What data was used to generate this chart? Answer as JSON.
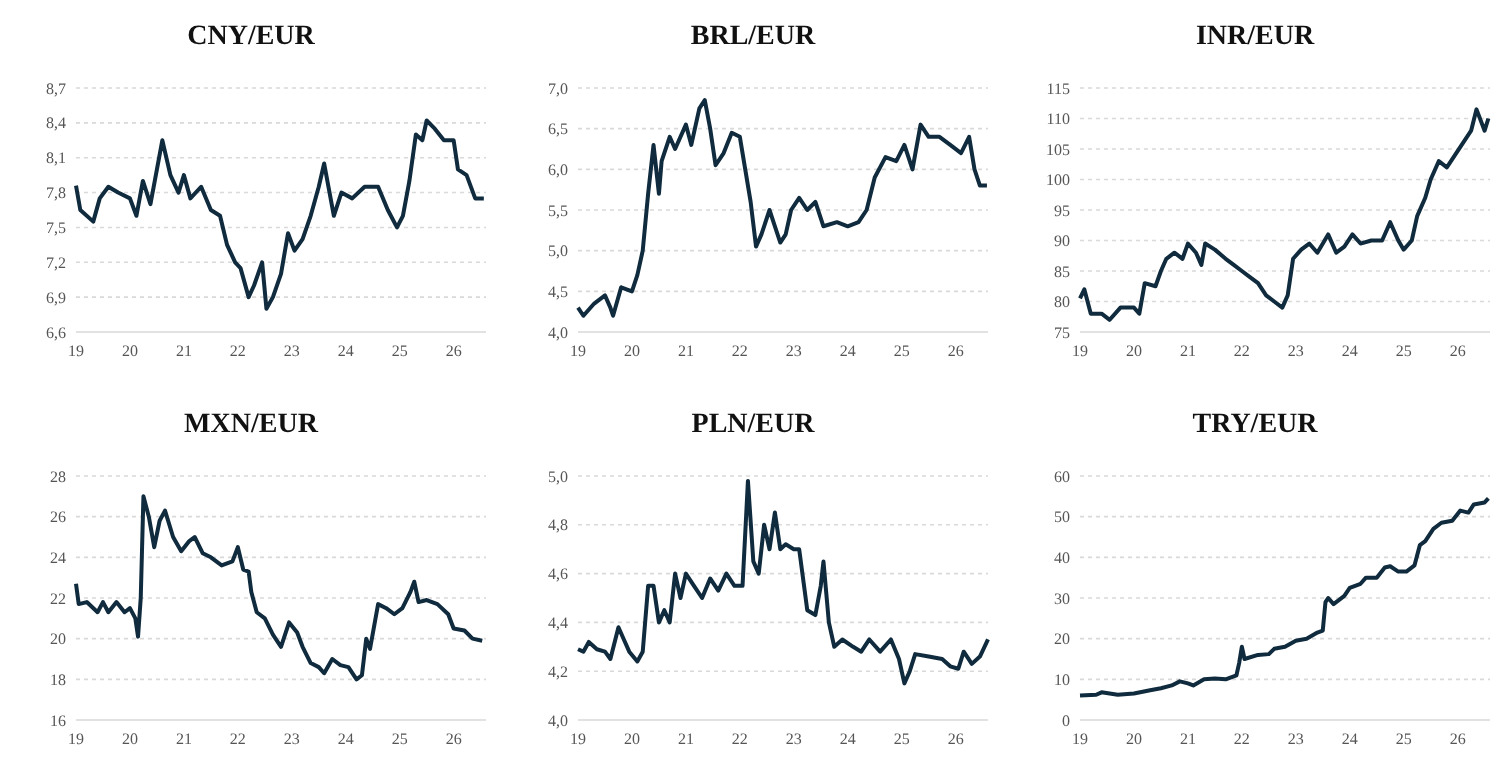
{
  "chart_data": [
    {
      "type": "line",
      "title": "CNY/EUR",
      "xlim": [
        19,
        26.6
      ],
      "xticks": [
        19,
        20,
        21,
        22,
        23,
        24,
        25,
        26
      ],
      "ylim": [
        6.6,
        8.7
      ],
      "yticks": [
        {
          "value": 6.6,
          "label": "6,6"
        },
        {
          "value": 6.9,
          "label": "6,9"
        },
        {
          "value": 7.2,
          "label": "7,2"
        },
        {
          "value": 7.5,
          "label": "7,5"
        },
        {
          "value": 7.8,
          "label": "7,8"
        },
        {
          "value": 8.1,
          "label": "8,1"
        },
        {
          "value": 8.4,
          "label": "8,4"
        },
        {
          "value": 8.7,
          "label": "8,7"
        }
      ],
      "grid": "y",
      "x": [
        19.0,
        19.08,
        19.32,
        19.44,
        19.6,
        19.78,
        20.0,
        20.12,
        20.24,
        20.38,
        20.5,
        20.6,
        20.75,
        20.9,
        21.0,
        21.12,
        21.32,
        21.5,
        21.67,
        21.8,
        21.95,
        22.05,
        22.2,
        22.3,
        22.45,
        22.53,
        22.65,
        22.8,
        22.93,
        23.05,
        23.2,
        23.35,
        23.5,
        23.6,
        23.68,
        23.78,
        23.92,
        24.12,
        24.35,
        24.6,
        24.78,
        24.95,
        25.06,
        25.18,
        25.3,
        25.42,
        25.5,
        25.65,
        25.82,
        26.0,
        26.08,
        26.24,
        26.4,
        26.56
      ],
      "series": [
        {
          "color": "#0f2b3d",
          "values": [
            7.86,
            7.65,
            7.55,
            7.75,
            7.85,
            7.8,
            7.75,
            7.6,
            7.9,
            7.7,
            8.0,
            8.25,
            7.95,
            7.8,
            7.95,
            7.75,
            7.85,
            7.65,
            7.6,
            7.35,
            7.2,
            7.15,
            6.9,
            7.0,
            7.2,
            6.8,
            6.9,
            7.1,
            7.45,
            7.3,
            7.4,
            7.6,
            7.85,
            8.05,
            7.85,
            7.6,
            7.8,
            7.75,
            7.85,
            7.85,
            7.65,
            7.5,
            7.6,
            7.9,
            8.3,
            8.25,
            8.42,
            8.35,
            8.25,
            8.25,
            8.0,
            7.95,
            7.75,
            7.75
          ]
        }
      ]
    },
    {
      "type": "line",
      "title": "BRL/EUR",
      "xlim": [
        19,
        26.6
      ],
      "xticks": [
        19,
        20,
        21,
        22,
        23,
        24,
        25,
        26
      ],
      "ylim": [
        4.0,
        7.0
      ],
      "yticks": [
        {
          "value": 4.0,
          "label": "4,0"
        },
        {
          "value": 4.5,
          "label": "4,5"
        },
        {
          "value": 5.0,
          "label": "5,0"
        },
        {
          "value": 5.5,
          "label": "5,5"
        },
        {
          "value": 6.0,
          "label": "6,0"
        },
        {
          "value": 6.5,
          "label": "6,5"
        },
        {
          "value": 7.0,
          "label": "7,0"
        }
      ],
      "grid": "y",
      "x": [
        19.0,
        19.1,
        19.3,
        19.5,
        19.6,
        19.65,
        19.8,
        20.0,
        20.1,
        20.2,
        20.3,
        20.4,
        20.5,
        20.55,
        20.7,
        20.8,
        21.0,
        21.1,
        21.25,
        21.35,
        21.45,
        21.55,
        21.7,
        21.85,
        22.0,
        22.1,
        22.2,
        22.3,
        22.4,
        22.55,
        22.65,
        22.75,
        22.85,
        22.95,
        23.1,
        23.25,
        23.4,
        23.55,
        23.8,
        24.0,
        24.2,
        24.35,
        24.5,
        24.7,
        24.9,
        25.05,
        25.2,
        25.35,
        25.5,
        25.7,
        25.9,
        26.1,
        26.25,
        26.35,
        26.45,
        26.58
      ],
      "series": [
        {
          "color": "#0f2b3d",
          "values": [
            4.3,
            4.2,
            4.35,
            4.45,
            4.3,
            4.2,
            4.55,
            4.5,
            4.7,
            5.0,
            5.7,
            6.3,
            5.7,
            6.1,
            6.4,
            6.25,
            6.55,
            6.3,
            6.75,
            6.85,
            6.5,
            6.05,
            6.2,
            6.45,
            6.4,
            6.0,
            5.6,
            5.05,
            5.2,
            5.5,
            5.3,
            5.1,
            5.2,
            5.5,
            5.65,
            5.5,
            5.6,
            5.3,
            5.35,
            5.3,
            5.35,
            5.5,
            5.9,
            6.15,
            6.1,
            6.3,
            6.0,
            6.55,
            6.4,
            6.4,
            6.3,
            6.2,
            6.4,
            6.0,
            5.8,
            5.8
          ]
        }
      ]
    },
    {
      "type": "line",
      "title": "INR/EUR",
      "xlim": [
        19,
        26.6
      ],
      "xticks": [
        19,
        20,
        21,
        22,
        23,
        24,
        25,
        26
      ],
      "ylim": [
        75,
        115
      ],
      "yticks": [
        75,
        80,
        85,
        90,
        95,
        100,
        105,
        110,
        115
      ],
      "grid": "y",
      "x": [
        19.0,
        19.08,
        19.2,
        19.4,
        19.55,
        19.75,
        20.0,
        20.1,
        20.2,
        20.4,
        20.5,
        20.6,
        20.75,
        20.9,
        21.0,
        21.15,
        21.25,
        21.32,
        21.5,
        21.7,
        21.85,
        22.0,
        22.15,
        22.3,
        22.45,
        22.6,
        22.75,
        22.85,
        22.95,
        23.1,
        23.25,
        23.4,
        23.6,
        23.75,
        23.9,
        24.05,
        24.2,
        24.4,
        24.6,
        24.75,
        24.9,
        25.0,
        25.15,
        25.25,
        25.4,
        25.5,
        25.65,
        25.8,
        25.95,
        26.1,
        26.25,
        26.35,
        26.5,
        26.57
      ],
      "series": [
        {
          "color": "#0f2b3d",
          "values": [
            80.5,
            82,
            78,
            78,
            77,
            79,
            79,
            78,
            83,
            82.5,
            85,
            87,
            88,
            87,
            89.5,
            88,
            86,
            89.5,
            88.5,
            87,
            86,
            85,
            84,
            83,
            81,
            80,
            79,
            81,
            87,
            88.5,
            89.5,
            88,
            91,
            88,
            89,
            91,
            89.5,
            90,
            90,
            93,
            90,
            88.5,
            90,
            94,
            97,
            100,
            103,
            102,
            104,
            106,
            108,
            111.5,
            108,
            110
          ]
        }
      ]
    },
    {
      "type": "line",
      "title": "MXN/EUR",
      "xlim": [
        19,
        26.6
      ],
      "xticks": [
        19,
        20,
        21,
        22,
        23,
        24,
        25,
        26
      ],
      "ylim": [
        16,
        28
      ],
      "yticks": [
        16,
        18,
        20,
        22,
        24,
        26,
        28
      ],
      "grid": "y",
      "x": [
        19.0,
        19.05,
        19.2,
        19.4,
        19.5,
        19.6,
        19.75,
        19.9,
        20.0,
        20.1,
        20.15,
        20.2,
        20.25,
        20.35,
        20.45,
        20.55,
        20.65,
        20.8,
        20.95,
        21.1,
        21.2,
        21.35,
        21.5,
        21.7,
        21.9,
        22.0,
        22.1,
        22.2,
        22.25,
        22.35,
        22.5,
        22.65,
        22.8,
        22.95,
        23.1,
        23.2,
        23.35,
        23.5,
        23.6,
        23.75,
        23.9,
        24.05,
        24.2,
        24.3,
        24.38,
        24.45,
        24.6,
        24.75,
        24.9,
        25.05,
        25.2,
        25.27,
        25.35,
        25.5,
        25.7,
        25.9,
        26.0,
        26.2,
        26.35,
        26.53
      ],
      "series": [
        {
          "color": "#0f2b3d",
          "values": [
            22.7,
            21.7,
            21.8,
            21.3,
            21.8,
            21.3,
            21.8,
            21.3,
            21.5,
            21.0,
            20.1,
            22.0,
            27.0,
            26.0,
            24.5,
            25.8,
            26.3,
            25.0,
            24.3,
            24.8,
            25.0,
            24.2,
            24.0,
            23.6,
            23.8,
            24.5,
            23.4,
            23.3,
            22.3,
            21.3,
            21.0,
            20.2,
            19.6,
            20.8,
            20.3,
            19.6,
            18.8,
            18.6,
            18.3,
            19.0,
            18.7,
            18.6,
            18.0,
            18.2,
            20.0,
            19.5,
            21.7,
            21.5,
            21.2,
            21.5,
            22.3,
            22.8,
            21.8,
            21.9,
            21.7,
            21.2,
            20.5,
            20.4,
            20.0,
            19.9
          ]
        }
      ]
    },
    {
      "type": "line",
      "title": "PLN/EUR",
      "xlim": [
        19,
        26.6
      ],
      "xticks": [
        19,
        20,
        21,
        22,
        23,
        24,
        25,
        26
      ],
      "ylim": [
        4.0,
        5.0
      ],
      "yticks": [
        {
          "value": 4.0,
          "label": "4,0"
        },
        {
          "value": 4.2,
          "label": "4,2"
        },
        {
          "value": 4.4,
          "label": "4,4"
        },
        {
          "value": 4.6,
          "label": "4,6"
        },
        {
          "value": 4.8,
          "label": "4,8"
        },
        {
          "value": 5.0,
          "label": "5,0"
        }
      ],
      "grid": "y",
      "x": [
        19.0,
        19.1,
        19.2,
        19.35,
        19.5,
        19.6,
        19.75,
        19.85,
        19.95,
        20.1,
        20.2,
        20.3,
        20.4,
        20.5,
        20.6,
        20.7,
        20.8,
        20.9,
        21.0,
        21.15,
        21.3,
        21.45,
        21.6,
        21.75,
        21.9,
        22.05,
        22.15,
        22.25,
        22.35,
        22.45,
        22.55,
        22.65,
        22.75,
        22.85,
        23.0,
        23.1,
        23.25,
        23.4,
        23.5,
        23.55,
        23.65,
        23.75,
        23.9,
        24.1,
        24.25,
        24.4,
        24.6,
        24.8,
        24.95,
        25.05,
        25.15,
        25.25,
        25.5,
        25.75,
        25.9,
        26.05,
        26.15,
        26.3,
        26.45,
        26.6
      ],
      "series": [
        {
          "color": "#0f2b3d",
          "values": [
            4.29,
            4.28,
            4.32,
            4.29,
            4.28,
            4.25,
            4.38,
            4.33,
            4.28,
            4.24,
            4.28,
            4.55,
            4.55,
            4.4,
            4.45,
            4.4,
            4.6,
            4.5,
            4.6,
            4.55,
            4.5,
            4.58,
            4.53,
            4.6,
            4.55,
            4.55,
            4.98,
            4.65,
            4.6,
            4.8,
            4.7,
            4.85,
            4.7,
            4.72,
            4.7,
            4.7,
            4.45,
            4.43,
            4.55,
            4.65,
            4.4,
            4.3,
            4.33,
            4.3,
            4.28,
            4.33,
            4.28,
            4.33,
            4.25,
            4.15,
            4.2,
            4.27,
            4.26,
            4.25,
            4.22,
            4.21,
            4.28,
            4.23,
            4.26,
            4.33
          ]
        }
      ]
    },
    {
      "type": "line",
      "title": "TRY/EUR",
      "xlim": [
        19,
        26.6
      ],
      "xticks": [
        19,
        20,
        21,
        22,
        23,
        24,
        25,
        26
      ],
      "ylim": [
        0,
        60
      ],
      "yticks": [
        0,
        10,
        20,
        30,
        40,
        50,
        60
      ],
      "grid": "y",
      "x": [
        19.0,
        19.3,
        19.4,
        19.7,
        20.0,
        20.3,
        20.5,
        20.7,
        20.85,
        21.0,
        21.1,
        21.3,
        21.5,
        21.7,
        21.9,
        21.95,
        22.0,
        22.05,
        22.3,
        22.5,
        22.6,
        22.8,
        23.0,
        23.2,
        23.4,
        23.5,
        23.55,
        23.6,
        23.7,
        23.9,
        24.0,
        24.2,
        24.3,
        24.5,
        24.65,
        24.75,
        24.9,
        25.05,
        25.2,
        25.3,
        25.4,
        25.55,
        25.7,
        25.9,
        26.05,
        26.2,
        26.3,
        26.5,
        26.57
      ],
      "series": [
        {
          "color": "#0f2b3d",
          "values": [
            6,
            6.2,
            6.8,
            6.2,
            6.5,
            7.3,
            7.8,
            8.5,
            9.5,
            9,
            8.5,
            10,
            10.2,
            10,
            11,
            14,
            18,
            15,
            16,
            16.2,
            17.5,
            18,
            19.5,
            20,
            21.5,
            22,
            29,
            30,
            28.5,
            30.5,
            32.5,
            33.5,
            35,
            35,
            37.5,
            37.8,
            36.5,
            36.5,
            38,
            43,
            44,
            47,
            48.5,
            49,
            51.5,
            51,
            53,
            53.5,
            54.5
          ]
        }
      ]
    }
  ]
}
